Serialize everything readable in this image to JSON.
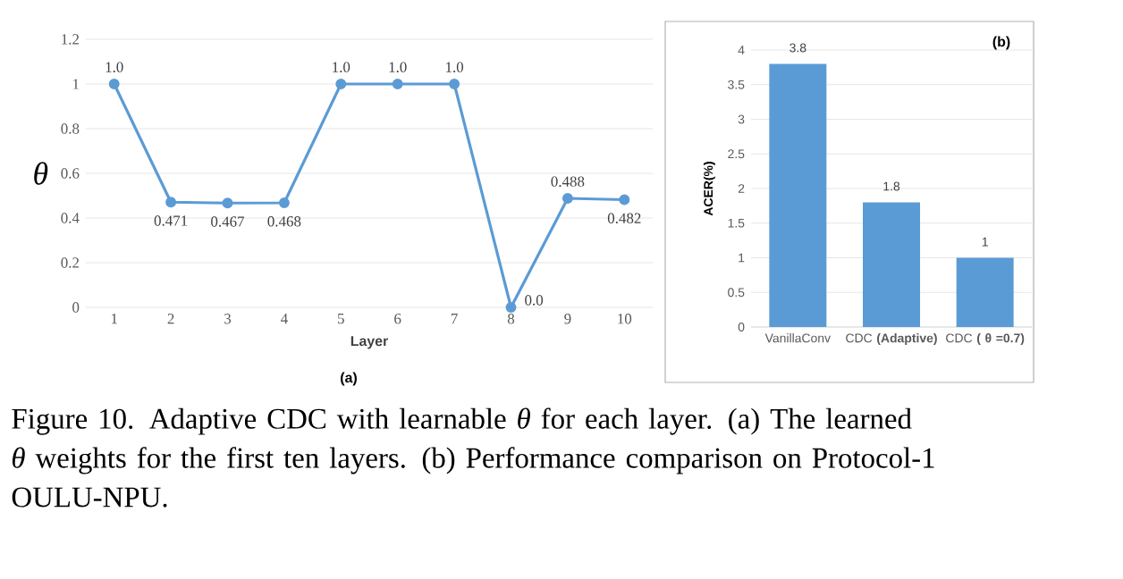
{
  "chart_data": [
    {
      "type": "line",
      "title": "(a)",
      "xlabel": "Layer",
      "ylabel": "θ",
      "categories": [
        "1",
        "2",
        "3",
        "4",
        "5",
        "6",
        "7",
        "8",
        "9",
        "10"
      ],
      "series": [
        {
          "color": "#5b9bd5",
          "values": [
            1,
            0.471,
            0.467,
            0.468,
            1,
            1,
            1,
            0,
            0.488,
            0.482
          ],
          "value_labels": [
            "1.0",
            "0.471",
            "0.467",
            "0.468",
            "1.0",
            "1.0",
            "1.0",
            "0.0",
            "0.488",
            "0.482"
          ]
        }
      ],
      "ylim": [
        0,
        1.2
      ],
      "yticks": [
        0,
        0.2,
        0.4,
        0.6,
        0.8,
        1,
        1.2
      ],
      "grid": "y",
      "marker": "circle",
      "line_style": "solid"
    },
    {
      "type": "bar",
      "title": "(b)",
      "ylabel": "ACER(%)",
      "categories": [
        "VanillaConv",
        "CDC **(Adaptive)**",
        "CDC **( θ =0.7)**"
      ],
      "series": [
        {
          "color": "#5b9bd5",
          "values": [
            3.8,
            1.8,
            1
          ]
        }
      ],
      "ylim": [
        0,
        4
      ],
      "yticks": [
        0,
        0.5,
        1,
        1.5,
        2,
        2.5,
        3,
        3.5,
        4
      ],
      "grid": "y",
      "data_labels": true,
      "annotations": [
        "Figure 10.   Adaptive CDC with learnable *θ* for each layer. (a) The learned *θ* weights for the first ten layers. (b) Performance comparison on Protocol-1 OULU-NPU."
      ]
    }
  ]
}
